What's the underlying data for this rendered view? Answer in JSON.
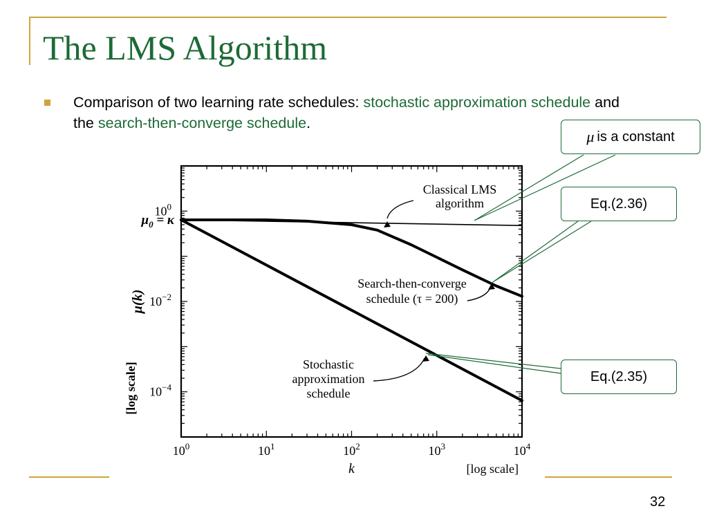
{
  "slide": {
    "title": "The LMS Algorithm",
    "bullet": {
      "part1": "Comparison of two learning rate schedules: ",
      "highlight1": "stochastic approximation schedule",
      "part2": " and the ",
      "highlight2": "search-then-converge schedule",
      "part3": "."
    },
    "page_number": "32",
    "colors": {
      "title": "#1d6a36",
      "highlight": "#1d6a36",
      "accent": "#cfa43a",
      "callout_border": "#1d6a36"
    }
  },
  "callouts": [
    {
      "symbol": "μ",
      "text": "is a constant"
    },
    {
      "symbol": "",
      "text": "Eq.(2.36)"
    },
    {
      "symbol": "",
      "text": "Eq.(2.35)"
    }
  ],
  "chart_data": {
    "type": "line",
    "x_scale": "log",
    "y_scale": "log",
    "xlim": [
      1,
      10000
    ],
    "ylim": [
      1e-05,
      10
    ],
    "x_ticks": [
      {
        "base": "10",
        "exp": "0"
      },
      {
        "base": "10",
        "exp": "1"
      },
      {
        "base": "10",
        "exp": "2"
      },
      {
        "base": "10",
        "exp": "3"
      },
      {
        "base": "10",
        "exp": "4"
      }
    ],
    "y_ticks": [
      {
        "base": "10",
        "exp": "0"
      },
      {
        "base": "10",
        "exp": "−2"
      },
      {
        "base": "10",
        "exp": "−4"
      }
    ],
    "mu0_label": "μ0 = κ",
    "xlabel": "k",
    "xlabel_note": "[log scale]",
    "ylabel": "μ(k)",
    "ylabel_note": "[log scale]",
    "series": [
      {
        "label_lines": [
          "Classical LMS",
          "algorithm"
        ],
        "x": [
          1,
          10000
        ],
        "y": [
          0.64,
          0.48
        ]
      },
      {
        "label_lines": [
          "Search-then-converge",
          "schedule (τ = 200)"
        ],
        "x": [
          1,
          3,
          10,
          30,
          100,
          200,
          500,
          1000,
          2000,
          5000,
          10000
        ],
        "y": [
          0.64,
          0.64,
          0.64,
          0.6,
          0.5,
          0.38,
          0.18,
          0.095,
          0.05,
          0.022,
          0.013
        ]
      },
      {
        "label_lines": [
          "Stochastic",
          "approximation",
          "schedule"
        ],
        "x": [
          1,
          10000
        ],
        "y": [
          0.64,
          6.4e-05
        ]
      }
    ]
  }
}
